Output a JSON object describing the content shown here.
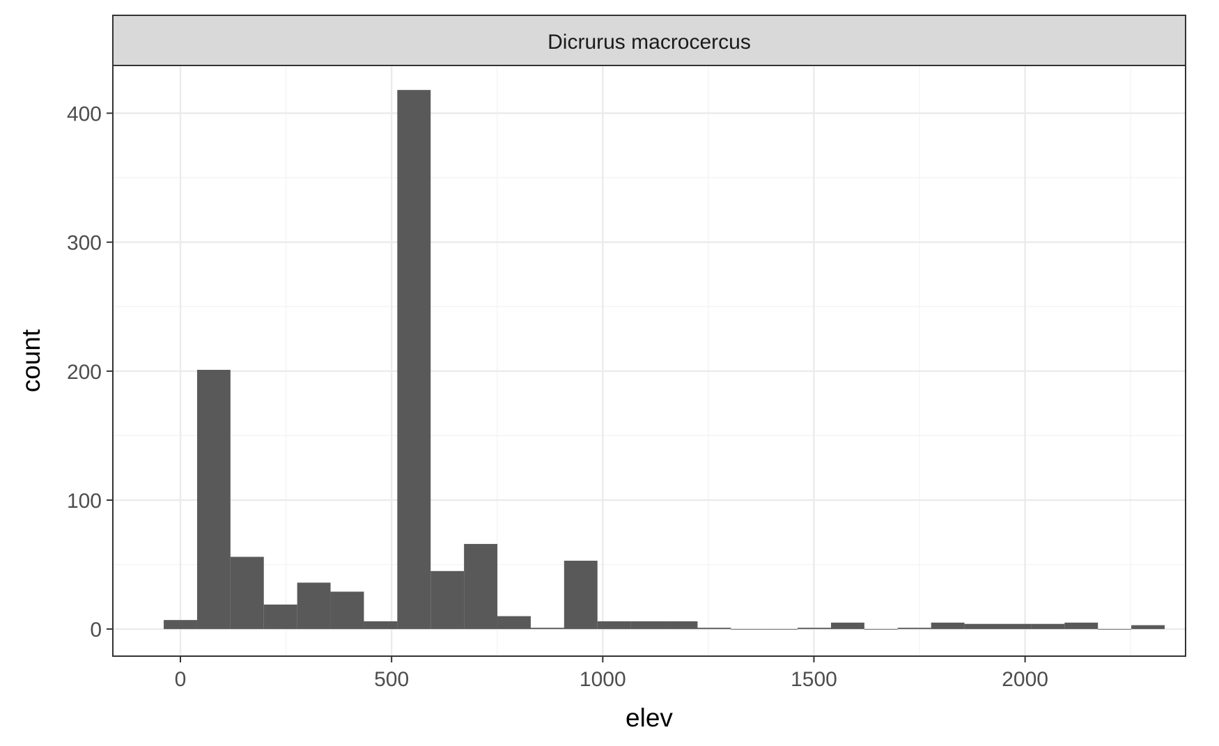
{
  "chart_data": {
    "type": "bar",
    "facet_label": "Dicrurus macrocercus",
    "xlabel": "elev",
    "ylabel": "count",
    "xlim": [
      -160,
      2380
    ],
    "ylim": [
      -21,
      437
    ],
    "x_ticks": [
      0,
      500,
      1000,
      1500,
      2000
    ],
    "y_ticks": [
      0,
      100,
      200,
      300,
      400
    ],
    "x_tick_labels": [
      "0",
      "500",
      "1000",
      "1500",
      "2000"
    ],
    "y_tick_labels": [
      "0",
      "100",
      "200",
      "300",
      "400"
    ],
    "bin_width": 79,
    "bin_centers": [
      0,
      79,
      158,
      237,
      316,
      395,
      474,
      553,
      632,
      711,
      790,
      869,
      948,
      1027,
      1106,
      1185,
      1264,
      1343,
      1422,
      1501,
      1580,
      1659,
      1738,
      1817,
      1896,
      1975,
      2054,
      2133,
      2212,
      2291
    ],
    "values": [
      7,
      201,
      56,
      19,
      36,
      29,
      6,
      418,
      45,
      66,
      10,
      1,
      53,
      6,
      6,
      6,
      1,
      0,
      0,
      1,
      5,
      0,
      1,
      5,
      4,
      4,
      4,
      5,
      0,
      3
    ],
    "grid": true,
    "colors": {
      "bar": "#595959",
      "strip_fill": "#d9d9d9",
      "panel_border": "#333333",
      "grid_major": "#ebebeb",
      "grid_minor": "#f2f2f2"
    }
  }
}
